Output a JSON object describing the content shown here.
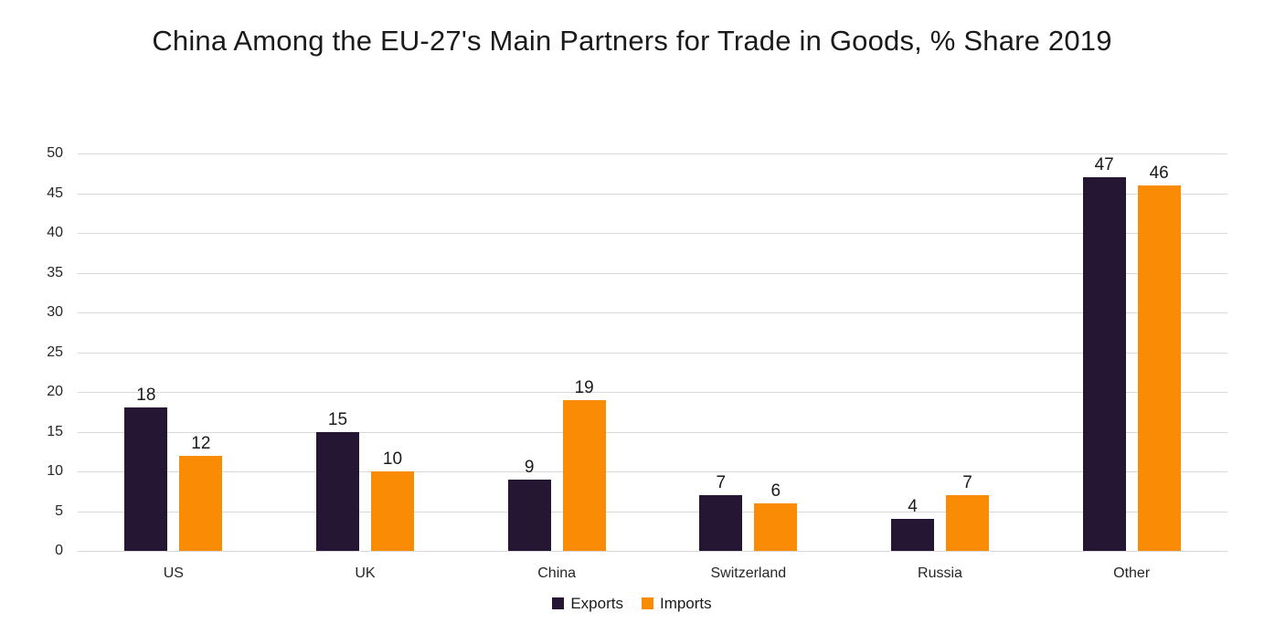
{
  "chart_data": {
    "type": "bar",
    "title": "China Among the EU-27's Main Partners for Trade in Goods, % Share 2019",
    "categories": [
      "US",
      "UK",
      "China",
      "Switzerland",
      "Russia",
      "Other"
    ],
    "series": [
      {
        "name": "Exports",
        "color": "#251733",
        "values": [
          18,
          15,
          9,
          7,
          4,
          47
        ]
      },
      {
        "name": "Imports",
        "color": "#FA8B05",
        "values": [
          12,
          10,
          19,
          6,
          7,
          46
        ]
      }
    ],
    "ylim": [
      0,
      50
    ],
    "yticks": [
      0,
      5,
      10,
      15,
      20,
      25,
      30,
      35,
      40,
      45,
      50
    ],
    "xlabel": "",
    "ylabel": "",
    "grid": true,
    "legend_position": "bottom",
    "data_labels": true
  },
  "colors": {
    "background": "#FFFFFF",
    "gridline": "#D9D9D9",
    "axis_text": "#262626",
    "title_text": "#1A1A1A",
    "exports": "#251733",
    "imports": "#FA8B05"
  }
}
